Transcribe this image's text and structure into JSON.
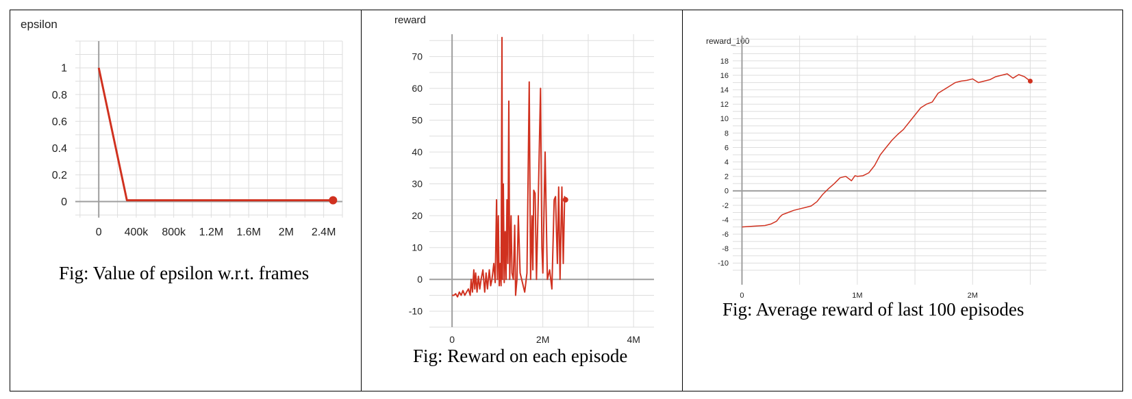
{
  "captions": {
    "epsilon": "Fig: Value of epsilon w.r.t. frames",
    "reward": "Fig: Reward on each episode",
    "reward100": "Fig: Average reward of last 100 episodes"
  },
  "chart_data": [
    {
      "id": "epsilon",
      "type": "line",
      "title": "epsilon",
      "xlabel": "",
      "ylabel": "",
      "xlim": [
        -250000,
        2600000
      ],
      "ylim": [
        -0.12,
        1.2
      ],
      "xticks": [
        0,
        400000,
        800000,
        1200000,
        1600000,
        2000000,
        2400000
      ],
      "xtick_labels": [
        "0",
        "400k",
        "800k",
        "1.2M",
        "1.6M",
        "2M",
        "2.4M"
      ],
      "yticks": [
        0,
        0.2,
        0.4,
        0.6,
        0.8,
        1
      ],
      "ytick_labels": [
        "0",
        "0.2",
        "0.4",
        "0.6",
        "0.8",
        "1"
      ],
      "grid": true,
      "color": "#d0311f",
      "series": [
        {
          "x": [
            0,
            300000,
            2500000
          ],
          "y": [
            1,
            0.01,
            0.01
          ]
        }
      ],
      "end_marker": true
    },
    {
      "id": "reward",
      "type": "line",
      "title": "reward",
      "xlabel": "",
      "ylabel": "",
      "xlim": [
        -500000,
        4450000
      ],
      "ylim": [
        -15,
        77
      ],
      "xticks": [
        0,
        2000000,
        4000000
      ],
      "xtick_labels": [
        "0",
        "2M",
        "4M"
      ],
      "yticks": [
        -10,
        0,
        10,
        20,
        30,
        40,
        50,
        60,
        70
      ],
      "ytick_labels": [
        "-10",
        "0",
        "10",
        "20",
        "30",
        "40",
        "50",
        "60",
        "70"
      ],
      "grid": true,
      "color": "#d0311f",
      "series": [
        {
          "x": [
            0,
            40000,
            80000,
            120000,
            160000,
            200000,
            240000,
            280000,
            320000,
            360000,
            400000,
            420000,
            450000,
            480000,
            500000,
            520000,
            550000,
            580000,
            610000,
            640000,
            680000,
            720000,
            750000,
            780000,
            820000,
            850000,
            880000,
            920000,
            950000,
            980000,
            1000000,
            1020000,
            1040000,
            1060000,
            1080000,
            1100000,
            1110000,
            1130000,
            1150000,
            1170000,
            1190000,
            1210000,
            1230000,
            1250000,
            1270000,
            1300000,
            1320000,
            1350000,
            1380000,
            1400000,
            1430000,
            1460000,
            1500000,
            1600000,
            1650000,
            1700000,
            1730000,
            1760000,
            1780000,
            1800000,
            1830000,
            1860000,
            1900000,
            1950000,
            1980000,
            2000000,
            2050000,
            2100000,
            2150000,
            2200000,
            2250000,
            2280000,
            2320000,
            2350000,
            2380000,
            2420000,
            2450000,
            2480000,
            2500000
          ],
          "y": [
            -5,
            -5,
            -4.5,
            -5.5,
            -4,
            -5,
            -3.5,
            -5,
            -4,
            -3,
            -5,
            0,
            -4,
            3,
            -3,
            2,
            -4,
            1,
            -3,
            0,
            3,
            -4,
            2,
            -3,
            3,
            -2,
            0,
            5,
            -1,
            25,
            0,
            20,
            -2,
            5,
            -2,
            76,
            0,
            30,
            -1,
            15,
            0,
            25,
            5,
            56,
            0,
            20,
            2,
            0,
            17,
            -5,
            0,
            20,
            2,
            -4,
            2,
            62,
            0,
            20,
            3,
            28,
            27,
            0,
            25,
            60,
            10,
            2,
            40,
            0,
            3,
            -3,
            25,
            26,
            5,
            29,
            0,
            29,
            5,
            26,
            25
          ],
          "note_x_is_approx": true
        }
      ],
      "end_marker": true
    },
    {
      "id": "reward_100",
      "type": "line",
      "title": "reward_100",
      "xlabel": "",
      "ylabel": "",
      "xlim": [
        -80000,
        2640000
      ],
      "ylim": [
        -13,
        21.5
      ],
      "xticks": [
        0,
        1000000,
        2000000
      ],
      "xtick_labels": [
        "0",
        "1M",
        "2M"
      ],
      "yticks": [
        -10,
        -8,
        -6,
        -4,
        -2,
        0,
        2,
        4,
        6,
        8,
        10,
        12,
        14,
        16,
        18
      ],
      "ytick_labels": [
        "-10",
        "-8",
        "-6",
        "-4",
        "-2",
        "0",
        "2",
        "4",
        "6",
        "8",
        "10",
        "12",
        "14",
        "16",
        "18"
      ],
      "grid": true,
      "color": "#d0311f",
      "series": [
        {
          "x": [
            0,
            100000,
            200000,
            250000,
            300000,
            330000,
            350000,
            400000,
            450000,
            500000,
            550000,
            600000,
            650000,
            700000,
            750000,
            800000,
            850000,
            900000,
            950000,
            980000,
            1000000,
            1050000,
            1100000,
            1150000,
            1200000,
            1250000,
            1300000,
            1350000,
            1400000,
            1450000,
            1500000,
            1550000,
            1600000,
            1650000,
            1700000,
            1750000,
            1800000,
            1850000,
            1900000,
            1950000,
            2000000,
            2050000,
            2100000,
            2150000,
            2200000,
            2250000,
            2300000,
            2350000,
            2400000,
            2450000,
            2500000
          ],
          "y": [
            -5,
            -4.9,
            -4.8,
            -4.6,
            -4.2,
            -3.6,
            -3.3,
            -3.0,
            -2.7,
            -2.5,
            -2.3,
            -2.1,
            -1.5,
            -0.5,
            0.3,
            1.0,
            1.8,
            2.0,
            1.4,
            2.1,
            2.0,
            2.1,
            2.5,
            3.5,
            5.0,
            6.0,
            7.0,
            7.8,
            8.5,
            9.5,
            10.5,
            11.5,
            12.0,
            12.3,
            13.5,
            14.0,
            14.5,
            15.0,
            15.2,
            15.3,
            15.5,
            15.0,
            15.2,
            15.4,
            15.8,
            16.0,
            16.2,
            15.6,
            16.1,
            15.8,
            15.2
          ],
          "note_x_is_approx": true
        }
      ],
      "end_marker": true
    }
  ]
}
